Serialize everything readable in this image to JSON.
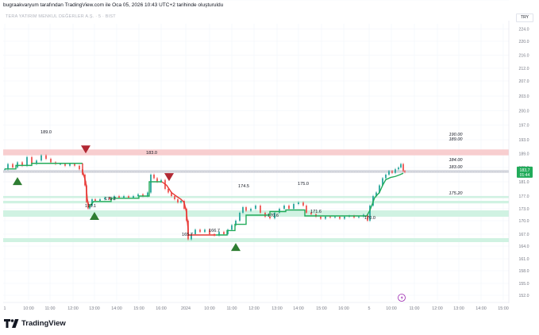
{
  "header": {
    "title": "bugraakvaryum tarafından TradingView.com ile Oca 05, 2026 10:43 UTC+2 tarihinde oluşturuldu"
  },
  "chart": {
    "symbol": "TERA YATIRIM MENKUL DEĞERLER A.Ş. · 5 · BIST",
    "currency": "TRY"
  },
  "chart_data": {
    "type": "line",
    "price_ticks": [
      "224.0",
      "220.0",
      "216.0",
      "212.0",
      "207.0",
      "203.0",
      "200.0",
      "197.0",
      "193.0",
      "189.0",
      "185.0",
      "181.0",
      "177.0",
      "173.0",
      "170.0",
      "167.0",
      "164.0",
      "161.0",
      "158.0",
      "155.0",
      "152.0",
      "149.0"
    ],
    "price_ticks_values": [
      224,
      220,
      216,
      212,
      207,
      203,
      200,
      197,
      193,
      189,
      185,
      181,
      177,
      173,
      170,
      167,
      164,
      161,
      158,
      155,
      152,
      149
    ],
    "time_ticks": [
      "1",
      "10:00",
      "11:00",
      "12:00",
      "13:00",
      "14:00",
      "15:00",
      "16:00",
      "2024",
      "10:00",
      "11:00",
      "12:00",
      "13:00",
      "14:00",
      "15:00",
      "16:00",
      "5",
      "10:00",
      "11:00",
      "12:00",
      "13:00",
      "14:00",
      "15:00"
    ],
    "current_price": "183,7",
    "countdown": "01:44",
    "price_labels": [
      {
        "text": "189.0",
        "value": 189
      },
      {
        "text": "183.0",
        "value": 183
      },
      {
        "text": "175.2",
        "value": 175.2
      },
      {
        "text": "173.1",
        "value": 173.1
      },
      {
        "text": "174.5",
        "value": 174.5
      },
      {
        "text": "175.0",
        "value": 175.0
      },
      {
        "text": "170.6",
        "value": 170.6
      },
      {
        "text": "171.6",
        "value": 171.6
      },
      {
        "text": "170.0",
        "value": 170.0
      },
      {
        "text": "165.7",
        "value": 165.7
      },
      {
        "text": "166.7",
        "value": 166.7
      }
    ],
    "levels": [
      {
        "text": "190.00",
        "value": 190.0,
        "color": "#f7c5c7"
      },
      {
        "text": "189.00",
        "value": 189.0,
        "color": "#f7c5c7"
      },
      {
        "text": "184.00",
        "value": 184.0,
        "color": "#d1d4dc"
      },
      {
        "text": "183.00",
        "value": 183.0,
        "color": "#d1d4dc"
      },
      {
        "text": "175.20",
        "value": 175.2,
        "color": "#c8f0dd"
      }
    ],
    "zones": [
      {
        "from": 188.5,
        "to": 190.2,
        "color": "#f7c5c7"
      },
      {
        "from": 183.5,
        "to": 184.3,
        "color": "#d1d4dc"
      },
      {
        "from": 176.5,
        "to": 177.0,
        "color": "#c8f0dd"
      },
      {
        "from": 174.7,
        "to": 175.5,
        "color": "#c8f0dd"
      },
      {
        "from": 171.0,
        "to": 172.6,
        "color": "#c8f0dd"
      },
      {
        "from": 165.0,
        "to": 166.0,
        "color": "#c8f0dd"
      }
    ],
    "signals": [
      "sell",
      "sell",
      "buy",
      "buy",
      "buy"
    ]
  },
  "branding": {
    "logo_text": "TradingView"
  },
  "colors": {
    "up": "#26a69a",
    "down": "#ef5350",
    "green_line": "#22ab5a",
    "red_line": "#e53935",
    "accent": "#2962ff"
  }
}
